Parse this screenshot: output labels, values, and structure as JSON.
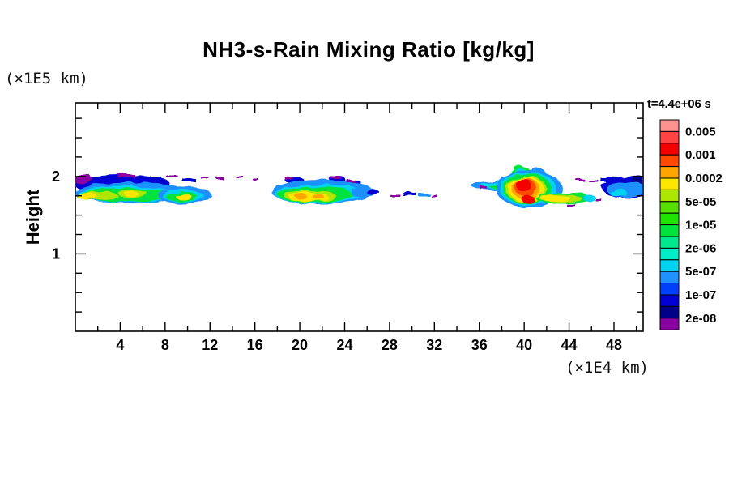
{
  "title": "NH3-s-Rain Mixing Ratio [kg/kg]",
  "labels": {
    "y_unit": "(×1E5 km)",
    "x_unit": "(×1E4 km)",
    "height": "Height",
    "time": "t=4.4e+06 s"
  },
  "chart_data": {
    "type": "heatmap",
    "title": "NH3-s-Rain Mixing Ratio [kg/kg]",
    "xlabel": "(×1E4 km)",
    "ylabel": "Height (×1E5 km)",
    "time_label": "t=4.4e+06 s",
    "x_range": [
      0,
      50.6
    ],
    "y_range": [
      0,
      2.95
    ],
    "grid": false,
    "x_axis": {
      "minor_step": 2,
      "major_step": 4,
      "major_labels": [
        4,
        8,
        12,
        16,
        20,
        24,
        28,
        32,
        36,
        40,
        44,
        48
      ]
    },
    "y_axis": {
      "minor_step": 0.25,
      "major_labels": [
        1,
        2
      ]
    },
    "colorbar": {
      "units": "kg/kg",
      "position": "right",
      "labels_top_to_bottom": [
        "0.005",
        "0.001",
        "0.0002",
        "5e-05",
        "1e-05",
        "2e-06",
        "5e-07",
        "1e-07",
        "2e-08"
      ],
      "colors_top_to_bottom": [
        "#ff9090",
        "#ff4242",
        "#f40000",
        "#ff4a00",
        "#ffa500",
        "#ffe600",
        "#ade600",
        "#55e000",
        "#1fe300",
        "#00e23c",
        "#00e78d",
        "#00efc8",
        "#00d2f0",
        "#1e90ff",
        "#0040fa",
        "#0000d2",
        "#000089",
        "#8a00a0"
      ]
    },
    "features": [
      {
        "cluster": "left band",
        "x_extent_1e4km": [
          0,
          10.8
        ],
        "height_extent_1e5km": [
          1.62,
          2.0
        ],
        "peak_mixing_ratio": "~1e-04 (yellow cores)"
      },
      {
        "cluster": "center band",
        "x_extent_1e4km": [
          17.5,
          27.2
        ],
        "height_extent_1e5km": [
          1.62,
          2.0
        ],
        "peak_mixing_ratio": "~2e-04 to 1e-03 (orange spots)"
      },
      {
        "cluster": "sparse specks",
        "x_extent_1e4km": [
          28,
          32
        ],
        "height_extent_1e5km": [
          1.72,
          1.82
        ],
        "peak_mixing_ratio": "~1e-07"
      },
      {
        "cluster": "strong storm",
        "x_extent_1e4km": [
          36,
          46.3
        ],
        "height_extent_1e5km": [
          1.55,
          2.1
        ],
        "peak_mixing_ratio": "~0.001-0.005 (red core)"
      },
      {
        "cluster": "right edge patch",
        "x_extent_1e4km": [
          46.5,
          50.6
        ],
        "height_extent_1e5km": [
          1.68,
          1.95
        ],
        "peak_mixing_ratio": "~1e-07 to 5e-07"
      },
      {
        "cluster": "scattered top specks",
        "height_1e5km": 2.0,
        "mixing_ratio": "~2e-08 (purple)"
      }
    ],
    "render_layers": [
      {
        "f": "#0000d2",
        "e": [
          150,
          227,
          60,
          11
        ]
      },
      {
        "f": "#8a00a0",
        "e": [
          100,
          221,
          14,
          5
        ]
      },
      {
        "f": "#1e90ff",
        "e": [
          161,
          238,
          71,
          13
        ]
      },
      {
        "f": "#00d2f0",
        "e": [
          158,
          240,
          63,
          10
        ]
      },
      {
        "f": "#00e23c",
        "e": [
          155,
          241,
          56,
          8.5
        ]
      },
      {
        "f": "#ade600",
        "e": [
          120,
          242,
          26,
          5.5
        ]
      },
      {
        "f": "#ffe600",
        "e": [
          108,
          242,
          12,
          4
        ]
      },
      {
        "f": "#ade600",
        "e": [
          164,
          239,
          18,
          5
        ]
      },
      {
        "f": "#ffe600",
        "e": [
          162,
          239,
          9,
          3.5
        ]
      },
      {
        "f": "#1e90ff",
        "e": [
          228,
          241,
          33,
          11
        ]
      },
      {
        "f": "#00d2f0",
        "e": [
          226,
          242,
          26,
          8
        ]
      },
      {
        "f": "#00e23c",
        "e": [
          224,
          243,
          20,
          6
        ]
      },
      {
        "f": "#ffe600",
        "e": [
          227,
          243,
          10,
          3.5
        ]
      },
      {
        "f": "#0000d2",
        "e": [
          363,
          222,
          12,
          4
        ]
      },
      {
        "f": "#0000d2",
        "e": [
          416,
          221,
          10,
          4
        ]
      },
      {
        "f": "#0000d2",
        "e": [
          434,
          226,
          12,
          5
        ]
      },
      {
        "f": "#1e90ff",
        "e": [
          398,
          237,
          63,
          15
        ]
      },
      {
        "f": "#00d2f0",
        "e": [
          393,
          239,
          54,
          12
        ]
      },
      {
        "f": "#00e23c",
        "e": [
          388,
          240,
          46,
          10
        ]
      },
      {
        "f": "#ade600",
        "e": [
          383,
          242,
          32,
          7
        ]
      },
      {
        "f": "#ffe600",
        "e": [
          381,
          243,
          24,
          5.5
        ]
      },
      {
        "f": "#ffa500",
        "e": [
          372,
          243,
          7,
          3.5
        ]
      },
      {
        "f": "#ffa500",
        "e": [
          393,
          243,
          7,
          3.5
        ]
      },
      {
        "f": "#1e90ff",
        "e": [
          450,
          238,
          17,
          5
        ]
      },
      {
        "f": "#0000d2",
        "e": [
          461,
          238,
          8,
          3
        ]
      },
      {
        "f": "#1e90ff",
        "e": [
          613,
          229,
          31,
          6
        ]
      },
      {
        "f": "#00d2f0",
        "e": [
          617,
          229,
          24,
          4.5
        ]
      },
      {
        "f": "#00e23c",
        "e": [
          622,
          230,
          18,
          3
        ]
      },
      {
        "f": "#00e23c",
        "e": [
          643,
          212,
          12,
          6
        ]
      },
      {
        "f": "#00d2f0",
        "e": [
          643,
          212,
          7,
          3.5
        ]
      },
      {
        "f": "#1e90ff",
        "e": [
          664,
          213,
          9,
          5
        ]
      },
      {
        "f": "#1e90ff",
        "e": [
          653,
          233,
          41,
          23
        ]
      },
      {
        "f": "#00d2f0",
        "e": [
          652,
          233,
          35,
          20.5
        ]
      },
      {
        "f": "#00e23c",
        "e": [
          651,
          233,
          30,
          18.5
        ]
      },
      {
        "f": "#ade600",
        "e": [
          650,
          234,
          25,
          16.5
        ]
      },
      {
        "f": "#ffe600",
        "e": [
          650,
          234,
          22,
          15
        ]
      },
      {
        "f": "#ffa500",
        "e": [
          649,
          233,
          17,
          13
        ]
      },
      {
        "f": "#ff4a00",
        "e": [
          648,
          231,
          13,
          11
        ]
      },
      {
        "f": "#f40000",
        "e": [
          646,
          228,
          9,
          8
        ]
      },
      {
        "f": "#f40000",
        "e": [
          652,
          246,
          8,
          5
        ]
      },
      {
        "f": "#00e23c",
        "e": [
          697,
          245,
          35,
          6.5
        ]
      },
      {
        "f": "#ade600",
        "e": [
          692,
          245,
          27,
          4.5
        ]
      },
      {
        "f": "#ffe600",
        "e": [
          686,
          245,
          19,
          3.5
        ]
      },
      {
        "f": "#00d2f0",
        "e": [
          728,
          245,
          8,
          4
        ]
      },
      {
        "f": "#0000d2",
        "e": [
          777,
          231,
          34,
          14
        ]
      },
      {
        "f": "#000089",
        "e": [
          789,
          227,
          12,
          9
        ]
      },
      {
        "f": "#1e90ff",
        "e": [
          773,
          234,
          24,
          10
        ]
      },
      {
        "f": "#00d2f0",
        "e": [
          763,
          238,
          11,
          4.5
        ]
      }
    ],
    "speckles": [
      {
        "f": "#8a00a0",
        "r": [
          93,
          216,
          18,
          3
        ]
      },
      {
        "f": "#0000d2",
        "r": [
          115,
          219,
          26,
          4
        ]
      },
      {
        "f": "#8a00a0",
        "r": [
          146,
          215,
          20,
          4
        ]
      },
      {
        "f": "#0000d2",
        "r": [
          170,
          218,
          30,
          5
        ]
      },
      {
        "f": "#8a00a0",
        "r": [
          205,
          216,
          14,
          3
        ]
      },
      {
        "f": "#0000d2",
        "r": [
          225,
          220,
          16,
          4
        ]
      },
      {
        "f": "#8a00a0",
        "r": [
          248,
          218,
          10,
          3
        ]
      },
      {
        "f": "#8a00a0",
        "r": [
          268,
          219,
          8,
          3
        ]
      },
      {
        "f": "#8a00a0",
        "r": [
          292,
          218,
          9,
          3
        ]
      },
      {
        "f": "#8a00a0",
        "r": [
          311,
          219,
          6,
          3
        ]
      },
      {
        "f": "#8a00a0",
        "r": [
          352,
          219,
          10,
          3
        ]
      },
      {
        "f": "#8a00a0",
        "r": [
          408,
          217,
          12,
          3
        ]
      },
      {
        "f": "#8a00a0",
        "r": [
          428,
          221,
          10,
          4
        ]
      },
      {
        "f": "#8a00a0",
        "r": [
          481,
          239,
          12,
          3
        ]
      },
      {
        "f": "#0000d2",
        "r": [
          497,
          237,
          16,
          4
        ]
      },
      {
        "f": "#1e90ff",
        "r": [
          516,
          238,
          14,
          4
        ]
      },
      {
        "f": "#8a00a0",
        "r": [
          532,
          240,
          8,
          3
        ]
      },
      {
        "f": "#8a00a0",
        "r": [
          594,
          231,
          8,
          3
        ]
      },
      {
        "f": "#8a00a0",
        "r": [
          700,
          252,
          10,
          3
        ]
      },
      {
        "f": "#8a00a0",
        "r": [
          736,
          246,
          7,
          3
        ]
      },
      {
        "f": "#8a00a0",
        "r": [
          712,
          221,
          10,
          3
        ]
      },
      {
        "f": "#8a00a0",
        "r": [
          727,
          222,
          12,
          3
        ]
      },
      {
        "f": "#0000d2",
        "r": [
          742,
          220,
          14,
          4
        ]
      }
    ]
  }
}
